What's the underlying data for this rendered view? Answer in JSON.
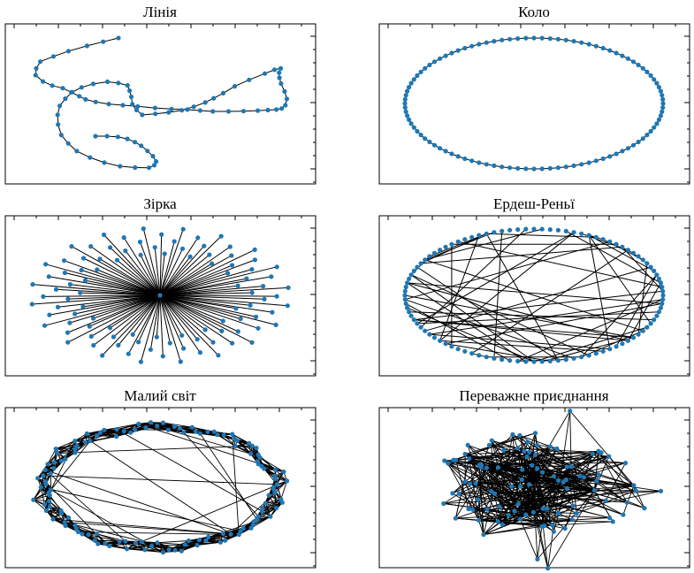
{
  "figure": {
    "background": "#ffffff",
    "node_color": "#1f77b4",
    "edge_color": "#000000"
  },
  "chart_data": [
    {
      "type": "network",
      "title": "Лінія",
      "layout": "path",
      "node_count": 80,
      "edge_model": "line",
      "axes_visible": false
    },
    {
      "type": "network",
      "title": "Коло",
      "layout": "circle",
      "node_count": 100,
      "edge_model": "ring",
      "axes_visible": false
    },
    {
      "type": "network",
      "title": "Зірка",
      "layout": "star",
      "node_count": 100,
      "edge_model": "star",
      "axes_visible": false
    },
    {
      "type": "network",
      "title": "Ердеш-Реньї",
      "layout": "circle",
      "node_count": 100,
      "edge_model": "random",
      "random_edges": 60,
      "axes_visible": false
    },
    {
      "type": "network",
      "title": "Малий світ",
      "layout": "ring-band",
      "node_count": 130,
      "edge_model": "small-world",
      "neighbors": 6,
      "rewired_edges": 30,
      "axes_visible": false
    },
    {
      "type": "network",
      "title": "Переважне приєднання",
      "layout": "spring",
      "node_count": 100,
      "edge_model": "preferential-attachment",
      "edges_per_node": 4,
      "axes_visible": false
    }
  ]
}
